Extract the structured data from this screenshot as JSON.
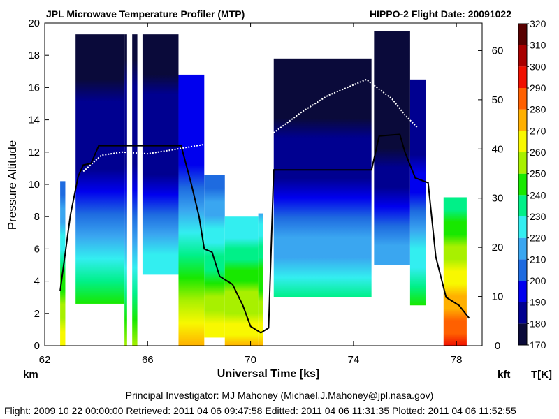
{
  "chart_data": {
    "type": "heatmap",
    "title": "JPL Microwave Temperature Profiler (MTP)",
    "subtitle": "HIPPO-2  Flight Date: 20091022",
    "xlabel": "Universal Time [ks]",
    "ylabel": "Pressure Altitude",
    "y_unit_left": "km",
    "y_unit_right": "kft",
    "colorbar_label": "T[K]",
    "xlim": [
      62,
      79
    ],
    "ylim": [
      0,
      20
    ],
    "ylim_right": [
      0,
      65.6
    ],
    "x_ticks": [
      "62",
      "66",
      "70",
      "74",
      "78"
    ],
    "x_tick_values": [
      62,
      66,
      70,
      74,
      78
    ],
    "y_ticks": [
      "0",
      "2",
      "4",
      "6",
      "8",
      "10",
      "12",
      "14",
      "16",
      "18",
      "20"
    ],
    "y_tick_values": [
      0,
      2,
      4,
      6,
      8,
      10,
      12,
      14,
      16,
      18,
      20
    ],
    "y_right_ticks": [
      "0",
      "10",
      "20",
      "30",
      "40",
      "50",
      "60"
    ],
    "y_right_tick_values": [
      0,
      10,
      20,
      30,
      40,
      50,
      60
    ],
    "colorbar_ticks": [
      "170",
      "180",
      "190",
      "200",
      "210",
      "220",
      "230",
      "240",
      "250",
      "260",
      "270",
      "280",
      "290",
      "300",
      "310",
      "320"
    ],
    "colorbar_values": [
      170,
      180,
      190,
      200,
      210,
      220,
      230,
      240,
      250,
      260,
      270,
      280,
      290,
      300,
      310,
      320
    ],
    "colorbar_colors": [
      "#000000",
      "#0a0a3a",
      "#000090",
      "#0000ee",
      "#1e6be0",
      "#3aa6f0",
      "#33eef0",
      "#00f088",
      "#18e800",
      "#a8f000",
      "#f8f800",
      "#ffb000",
      "#ff6000",
      "#f01000",
      "#a80000",
      "#580000"
    ],
    "temperature_lapse_K_per_km": 6.5,
    "segments": [
      {
        "x": [
          62.6,
          62.8
        ],
        "bottom": 0,
        "top": 10.2,
        "surface_T": 278
      },
      {
        "x": [
          63.2,
          65.1
        ],
        "bottom": 2.6,
        "top": 19.3,
        "surface_T": 268
      },
      {
        "x": [
          65.1,
          65.2
        ],
        "bottom": 0,
        "top": 19.3,
        "surface_T": 268
      },
      {
        "x": [
          65.4,
          65.6
        ],
        "bottom": 0,
        "top": 19.3,
        "surface_T": 268
      },
      {
        "x": [
          65.8,
          67.2
        ],
        "bottom": 4.4,
        "top": 19.3,
        "surface_T": 268
      },
      {
        "x": [
          67.2,
          68.2
        ],
        "bottom": 0,
        "top": 16.8,
        "surface_T": 280
      },
      {
        "x": [
          68.2,
          69.0
        ],
        "bottom": 0.5,
        "top": 10.6,
        "surface_T": 280
      },
      {
        "x": [
          69.0,
          70.3
        ],
        "bottom": 0,
        "top": 8.0,
        "surface_T": 282
      },
      {
        "x": [
          70.3,
          70.5
        ],
        "bottom": 0,
        "top": 8.2,
        "surface_T": 282
      },
      {
        "x": [
          70.9,
          74.7
        ],
        "bottom": 3.0,
        "top": 17.8,
        "surface_T": 265
      },
      {
        "x": [
          74.8,
          76.2
        ],
        "bottom": 5.0,
        "top": 19.5,
        "surface_T": 262
      },
      {
        "x": [
          76.2,
          76.8
        ],
        "bottom": 2.5,
        "top": 16.5,
        "surface_T": 270
      },
      {
        "x": [
          77.5,
          78.4
        ],
        "bottom": 0,
        "top": 9.2,
        "surface_T": 300
      }
    ],
    "aircraft_altitude_km": [
      [
        62.6,
        3.4
      ],
      [
        63.0,
        8.1
      ],
      [
        63.3,
        10.5
      ],
      [
        63.5,
        11.2
      ],
      [
        63.8,
        11.3
      ],
      [
        64.1,
        12.4
      ],
      [
        64.5,
        12.4
      ],
      [
        65.5,
        12.4
      ],
      [
        66.5,
        12.4
      ],
      [
        67.3,
        12.4
      ],
      [
        67.7,
        10.0
      ],
      [
        68.0,
        8.0
      ],
      [
        68.2,
        6.0
      ],
      [
        68.5,
        5.8
      ],
      [
        68.8,
        4.3
      ],
      [
        69.3,
        3.8
      ],
      [
        69.7,
        2.5
      ],
      [
        70.0,
        1.2
      ],
      [
        70.4,
        0.8
      ],
      [
        70.7,
        1.1
      ],
      [
        70.9,
        10.9
      ],
      [
        74.7,
        10.9
      ],
      [
        75.0,
        13.0
      ],
      [
        75.8,
        13.1
      ],
      [
        76.0,
        12.0
      ],
      [
        76.4,
        10.4
      ],
      [
        76.9,
        10.1
      ],
      [
        77.2,
        5.5
      ],
      [
        77.6,
        3.0
      ],
      [
        78.1,
        2.5
      ],
      [
        78.5,
        1.7
      ]
    ],
    "tropopause_km": [
      [
        63.5,
        10.8
      ],
      [
        64.2,
        11.8
      ],
      [
        65.0,
        12.0
      ],
      [
        66.0,
        11.9
      ],
      [
        66.8,
        12.1
      ],
      [
        70.9,
        13.2
      ],
      [
        72.0,
        14.5
      ],
      [
        73.0,
        15.5
      ],
      [
        74.5,
        16.5
      ],
      [
        75.5,
        15.3
      ],
      [
        76.0,
        14.3
      ],
      [
        76.5,
        13.5
      ]
    ]
  },
  "footer": {
    "investigator": "Principal Investigator: MJ Mahoney (Michael.J.Mahoney@jpl.nasa.gov)",
    "timestamps": "Flight: 2009 10 22 00:00:00   Retrieved: 2011 04 06 09:47:58   Editted: 2011 04 06 11:31:35   Plotted: 2011 04 06 11:52:55"
  }
}
